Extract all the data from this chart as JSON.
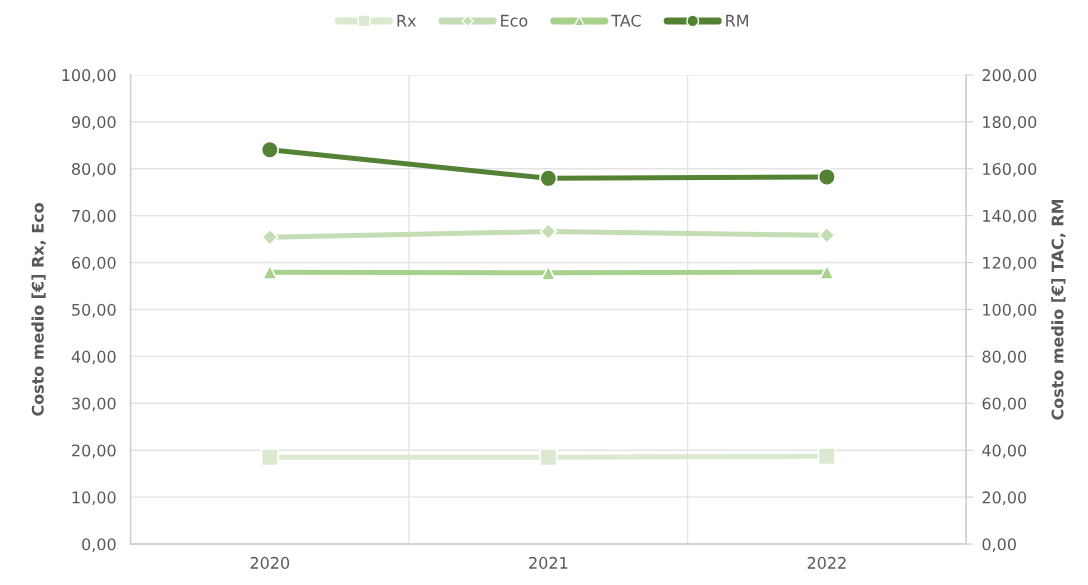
{
  "chart_data": {
    "type": "line",
    "categories": [
      "2020",
      "2021",
      "2022"
    ],
    "series": [
      {
        "name": "Rx",
        "color": "#dbe9d1",
        "marker": "square",
        "values": [
          18.5,
          18.5,
          18.7
        ]
      },
      {
        "name": "Eco",
        "color": "#c5ddb5",
        "marker": "diamond",
        "values": [
          65.4,
          66.6,
          65.8
        ]
      },
      {
        "name": "TAC",
        "color": "#a9d18e",
        "marker": "triangle",
        "axis": "y2",
        "values": [
          115.9,
          115.6,
          115.9
        ]
      },
      {
        "name": "RM",
        "color": "#548235",
        "marker": "circle",
        "axis": "y2",
        "values": [
          168.1,
          155.9,
          156.5
        ]
      }
    ],
    "ylabel": "Costo medio [€] Rx, Eco",
    "y2label": "Costo medio [€] TAC, RM",
    "ylim": [
      0,
      100
    ],
    "yticks": [
      {
        "value": 0,
        "label": "0,00"
      },
      {
        "value": 10,
        "label": "10,00"
      },
      {
        "value": 20,
        "label": "20,00"
      },
      {
        "value": 30,
        "label": "30,00"
      },
      {
        "value": 40,
        "label": "40,00"
      },
      {
        "value": 50,
        "label": "50,00"
      },
      {
        "value": 60,
        "label": "60,00"
      },
      {
        "value": 70,
        "label": "70,00"
      },
      {
        "value": 80,
        "label": "80,00"
      },
      {
        "value": 90,
        "label": "90,00"
      },
      {
        "value": 100,
        "label": "100,00"
      }
    ],
    "y2lim": [
      0,
      200
    ],
    "y2ticks": [
      {
        "value": 0,
        "label": "0,00"
      },
      {
        "value": 20,
        "label": "20,00"
      },
      {
        "value": 40,
        "label": "40,00"
      },
      {
        "value": 60,
        "label": "60,00"
      },
      {
        "value": 80,
        "label": "80,00"
      },
      {
        "value": 100,
        "label": "100,00"
      },
      {
        "value": 120,
        "label": "120,00"
      },
      {
        "value": 140,
        "label": "140,00"
      },
      {
        "value": 160,
        "label": "160,00"
      },
      {
        "value": 180,
        "label": "180,00"
      },
      {
        "value": 200,
        "label": "200,00"
      }
    ],
    "grid": true,
    "legend": "top",
    "line_style": "solid"
  }
}
